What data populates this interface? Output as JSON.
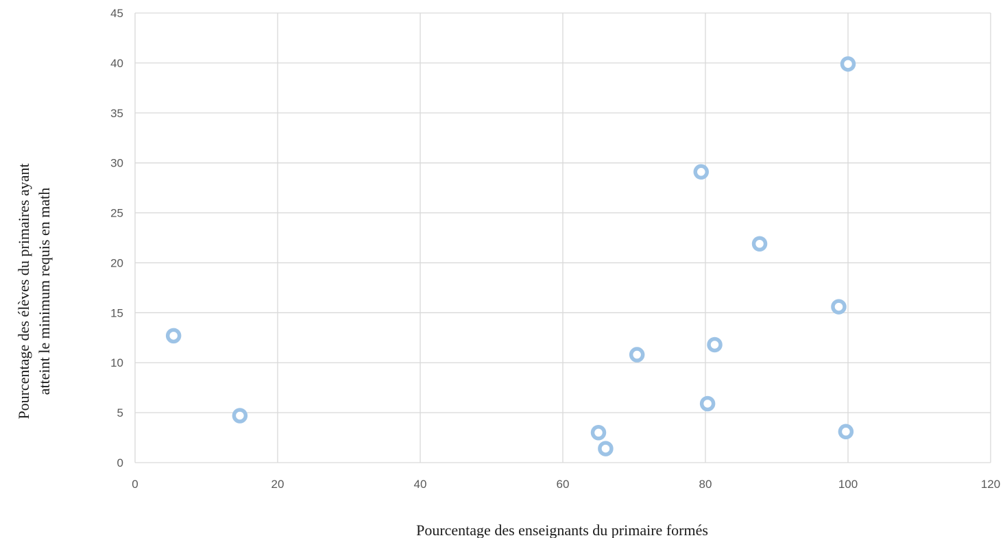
{
  "chart_data": {
    "type": "scatter",
    "xlabel": "Pourcentage des enseignants du primaire formés",
    "ylabel_lines": [
      "Pourcentage des élèves du primaires ayant",
      "atteint le minimum requis en math"
    ],
    "xlim": [
      0,
      120
    ],
    "ylim": [
      0,
      45
    ],
    "x_ticks": [
      0,
      20,
      40,
      60,
      80,
      100,
      120
    ],
    "y_ticks": [
      0,
      5,
      10,
      15,
      20,
      25,
      30,
      35,
      40,
      45
    ],
    "grid": true,
    "marker_color": "#9dc3e6",
    "points": [
      {
        "x": 5.4,
        "y": 12.7
      },
      {
        "x": 14.7,
        "y": 4.7
      },
      {
        "x": 65.0,
        "y": 3.0
      },
      {
        "x": 66.0,
        "y": 1.4
      },
      {
        "x": 70.4,
        "y": 10.8
      },
      {
        "x": 79.4,
        "y": 29.1
      },
      {
        "x": 80.3,
        "y": 5.9
      },
      {
        "x": 81.3,
        "y": 11.8
      },
      {
        "x": 87.6,
        "y": 21.9
      },
      {
        "x": 98.7,
        "y": 15.6
      },
      {
        "x": 99.7,
        "y": 3.1
      },
      {
        "x": 100.0,
        "y": 39.9
      }
    ]
  }
}
